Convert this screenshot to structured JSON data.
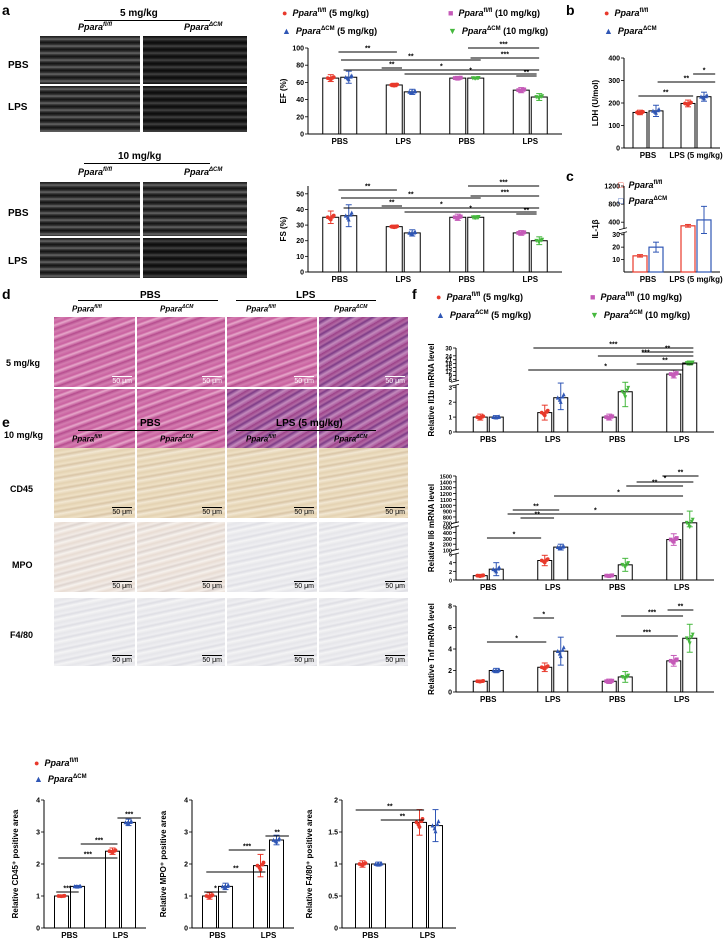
{
  "panels": {
    "a": "a",
    "b": "b",
    "c": "c",
    "d": "d",
    "e": "e",
    "f": "f"
  },
  "a": {
    "dose1": "5 mg/kg",
    "dose2": "10 mg/kg",
    "geno_ff": "Ppara",
    "geno_ff_sup": "fl/fl",
    "geno_cm": "Ppara",
    "geno_cm_sup": "ΔCM",
    "rows": [
      "PBS",
      "LPS"
    ],
    "legend": [
      {
        "name": "Ppara",
        "sup": "fl/fl",
        "tail": " (5 mg/kg)",
        "color": "#e8392b",
        "marker": "circle"
      },
      {
        "name": "Ppara",
        "sup": "fl/fl",
        "tail": " (10 mg/kg)",
        "color": "#c55ab8",
        "marker": "square"
      },
      {
        "name": "Ppara",
        "sup": "ΔCM",
        "tail": " (5 mg/kg)",
        "color": "#2f56b5",
        "marker": "triangle"
      },
      {
        "name": "Ppara",
        "sup": "ΔCM",
        "tail": " (10 mg/kg)",
        "color": "#46b83e",
        "marker": "dtriangle"
      }
    ]
  },
  "b": {
    "legend": [
      {
        "name": "Ppara",
        "sup": "fl/fl",
        "color": "#e8392b"
      },
      {
        "name": "Ppara",
        "sup": "ΔCM",
        "color": "#2f56b5"
      }
    ]
  },
  "c": {
    "legend": [
      {
        "name": "Ppara",
        "sup": "fl/fl",
        "color": "#e8392b"
      },
      {
        "name": "Ppara",
        "sup": "ΔCM",
        "color": "#2f56b5"
      }
    ]
  },
  "d": {
    "groups": [
      "PBS",
      "LPS"
    ],
    "rows": [
      "5 mg/kg",
      "10 mg/kg"
    ],
    "geno_ff": "Ppara",
    "geno_ff_sup": "fl/fl",
    "geno_cm": "Ppara",
    "geno_cm_sup": "ΔCM",
    "scale": "50 μm"
  },
  "e": {
    "groups": [
      "PBS",
      "LPS (5 mg/kg)"
    ],
    "rows": [
      "CD45",
      "MPO",
      "F4/80"
    ],
    "geno_ff": "Ppara",
    "geno_ff_sup": "fl/fl",
    "geno_cm": "Ppara",
    "geno_cm_sup": "ΔCM",
    "scale": "50 μm"
  },
  "f": {
    "legend": [
      {
        "name": "Ppara",
        "sup": "fl/fl",
        "tail": " (5 mg/kg)",
        "color": "#e8392b"
      },
      {
        "name": "Ppara",
        "sup": "fl/fl",
        "tail": " (10 mg/kg)",
        "color": "#c55ab8"
      },
      {
        "name": "Ppara",
        "sup": "ΔCM",
        "tail": " (5 mg/kg)",
        "color": "#2f56b5"
      },
      {
        "name": "Ppara",
        "sup": "ΔCM",
        "tail": " (10 mg/kg)",
        "color": "#46b83e"
      }
    ]
  },
  "colors": {
    "ff5": "#e8392b",
    "cm5": "#2f56b5",
    "ff10": "#c55ab8",
    "cm10": "#46b83e"
  },
  "chart_data": [
    {
      "id": "ef",
      "type": "bar",
      "ylabel": "EF (%)",
      "ylim": [
        0,
        100
      ],
      "yticks": [
        0,
        20,
        40,
        60,
        80,
        100
      ],
      "categories": [
        "PBS",
        "LPS",
        "PBS",
        "LPS"
      ],
      "series": [
        {
          "values": [
            65,
            57,
            65,
            51
          ],
          "err": [
            4,
            2,
            2,
            3
          ]
        },
        {
          "values": [
            66,
            49,
            65,
            43
          ],
          "err": [
            7,
            3,
            1,
            4
          ]
        }
      ],
      "sig": [
        {
          "g": [
            0,
            1
          ],
          "l": "**"
        },
        {
          "g": [
            1,
            1
          ],
          "l": "**"
        },
        {
          "g": [
            0,
            2
          ],
          "l": "**"
        },
        {
          "g": [
            1,
            3
          ],
          "l": "*"
        },
        {
          "g": [
            0,
            3
          ],
          "l": "*"
        },
        {
          "g": [
            2,
            3
          ],
          "l": "***"
        },
        {
          "g": [
            2,
            3
          ],
          "l": "***"
        },
        {
          "g": [
            3,
            3
          ],
          "l": "**"
        }
      ]
    },
    {
      "id": "fs",
      "type": "bar",
      "ylabel": "FS (%)",
      "ylim": [
        0,
        55
      ],
      "yticks": [
        0,
        10,
        20,
        30,
        40,
        50
      ],
      "categories": [
        "PBS",
        "LPS",
        "PBS",
        "LPS"
      ],
      "series": [
        {
          "values": [
            35,
            29,
            35,
            25
          ],
          "err": [
            4,
            1,
            2,
            1.5
          ]
        },
        {
          "values": [
            36,
            25,
            35,
            20
          ],
          "err": [
            7,
            2,
            1,
            2.5
          ]
        }
      ],
      "sig": [
        {
          "l": "**"
        },
        {
          "l": "**"
        },
        {
          "l": "**"
        },
        {
          "l": "*"
        },
        {
          "l": "*"
        },
        {
          "l": "***"
        },
        {
          "l": "***"
        },
        {
          "l": "**"
        }
      ]
    },
    {
      "id": "ldh",
      "type": "bar",
      "ylabel": "LDH (U/mol)",
      "ylim": [
        0,
        400
      ],
      "yticks": [
        0,
        100,
        200,
        300,
        400
      ],
      "categories": [
        "PBS",
        "LPS (5 mg/kg)"
      ],
      "series": [
        {
          "values": [
            158,
            198
          ],
          "err": [
            10,
            15
          ]
        },
        {
          "values": [
            165,
            228
          ],
          "err": [
            25,
            20
          ]
        }
      ],
      "sig": [
        {
          "l": "**"
        },
        {
          "l": "**"
        },
        {
          "l": "*"
        }
      ]
    },
    {
      "id": "il1b",
      "type": "bar",
      "ylabel": "IL-1β",
      "yticks_top": [
        400,
        800,
        1200
      ],
      "yticks_bottom": [
        10,
        20,
        30
      ],
      "categories": [
        "PBS",
        "LPS (5 mg/kg)"
      ],
      "series": [
        {
          "values": [
            13,
            320
          ],
          "err": [
            1,
            30
          ]
        },
        {
          "values": [
            20,
            450
          ],
          "err": [
            4,
            300
          ]
        }
      ]
    },
    {
      "id": "il1b_mrna",
      "type": "bar",
      "ylabel": "Relative Il1b mRNA level",
      "gene": "Il1b",
      "yticks_bottom": [
        0,
        1,
        2,
        3
      ],
      "yticks_top": [
        6,
        9,
        12,
        15,
        18,
        21,
        24,
        30
      ],
      "categories": [
        "PBS",
        "LPS",
        "PBS",
        "LPS"
      ],
      "series": [
        {
          "values": [
            1.0,
            1.3,
            1.0,
            10.0
          ],
          "err": [
            0.2,
            0.5,
            0.2,
            3
          ]
        },
        {
          "values": [
            1.0,
            2.3,
            2.7,
            18.5
          ],
          "err": [
            0.1,
            0.8,
            1.0,
            1.5
          ]
        }
      ],
      "sig": [
        {
          "l": "***"
        },
        {
          "l": "***"
        },
        {
          "l": "**"
        },
        {
          "l": "**"
        },
        {
          "l": "*"
        }
      ]
    },
    {
      "id": "il6_mrna",
      "type": "bar",
      "ylabel": "Relative Il6 mRNA level",
      "gene": "Il6",
      "yticks_bottom": [
        0,
        2,
        4,
        6,
        100,
        200,
        300,
        400,
        500
      ],
      "yticks_top": [
        700,
        800,
        900,
        1000,
        1100,
        1200,
        1300,
        1400,
        1500
      ],
      "categories": [
        "PBS",
        "LPS",
        "PBS",
        "LPS"
      ],
      "series": [
        {
          "values": [
            1.0,
            4.5,
            1.0,
            280
          ],
          "err": [
            0.3,
            1.2,
            0.3,
            100
          ]
        },
        {
          "values": [
            2.5,
            150,
            3.5,
            700
          ],
          "err": [
            1.5,
            50,
            1.5,
            200
          ]
        }
      ],
      "sig": [
        {
          "l": "*"
        },
        {
          "l": "**"
        },
        {
          "l": "**"
        },
        {
          "l": "*"
        },
        {
          "l": "*"
        },
        {
          "l": "**"
        },
        {
          "l": "*"
        },
        {
          "l": "**"
        }
      ]
    },
    {
      "id": "tnf_mrna",
      "type": "bar",
      "ylabel": "Relative Tnf mRNA level",
      "gene": "Tnf",
      "ylim": [
        0,
        8
      ],
      "yticks": [
        0,
        2,
        4,
        6,
        8
      ],
      "categories": [
        "PBS",
        "LPS",
        "PBS",
        "LPS"
      ],
      "series": [
        {
          "values": [
            1.0,
            2.3,
            1.0,
            2.9
          ],
          "err": [
            0.1,
            0.4,
            0.2,
            0.5
          ]
        },
        {
          "values": [
            2.0,
            3.8,
            1.4,
            5.0
          ],
          "err": [
            0.2,
            1.3,
            0.5,
            1.3
          ]
        }
      ],
      "sig": [
        {
          "l": "*"
        },
        {
          "l": "*"
        },
        {
          "l": "***"
        },
        {
          "l": "***"
        },
        {
          "l": "**"
        }
      ]
    },
    {
      "id": "cd45",
      "type": "bar",
      "ylabel": "Relative CD45⁺ positive area",
      "ylim": [
        0,
        4
      ],
      "yticks": [
        0,
        1,
        2,
        3,
        4
      ],
      "categories": [
        "PBS",
        "LPS"
      ],
      "series": [
        {
          "values": [
            1.0,
            2.4
          ],
          "err": [
            0.02,
            0.1
          ]
        },
        {
          "values": [
            1.3,
            3.3
          ],
          "err": [
            0.03,
            0.1
          ]
        }
      ],
      "sig": [
        {
          "l": "***"
        },
        {
          "l": "***"
        },
        {
          "l": "***"
        },
        {
          "l": "***"
        }
      ]
    },
    {
      "id": "mpo",
      "type": "bar",
      "ylabel": "Relative MPO⁺ positive area",
      "ylim": [
        0,
        4
      ],
      "yticks": [
        0,
        1,
        2,
        3,
        4
      ],
      "categories": [
        "PBS",
        "LPS"
      ],
      "series": [
        {
          "values": [
            1.0,
            1.95
          ],
          "err": [
            0.1,
            0.35
          ]
        },
        {
          "values": [
            1.3,
            2.75
          ],
          "err": [
            0.1,
            0.15
          ]
        }
      ],
      "sig": [
        {
          "l": "*"
        },
        {
          "l": "**"
        },
        {
          "l": "***"
        },
        {
          "l": "**"
        }
      ]
    },
    {
      "id": "f480",
      "type": "bar",
      "ylabel": "Relative F4/80⁺ positive area",
      "ylim": [
        0,
        2
      ],
      "yticks": [
        0.0,
        0.5,
        1.0,
        1.5,
        2.0
      ],
      "categories": [
        "PBS",
        "LPS"
      ],
      "series": [
        {
          "values": [
            1.0,
            1.65
          ],
          "err": [
            0.05,
            0.2
          ]
        },
        {
          "values": [
            1.0,
            1.6
          ],
          "err": [
            0.03,
            0.25
          ]
        }
      ],
      "sig": [
        {
          "l": "**"
        },
        {
          "l": "**"
        }
      ]
    }
  ]
}
